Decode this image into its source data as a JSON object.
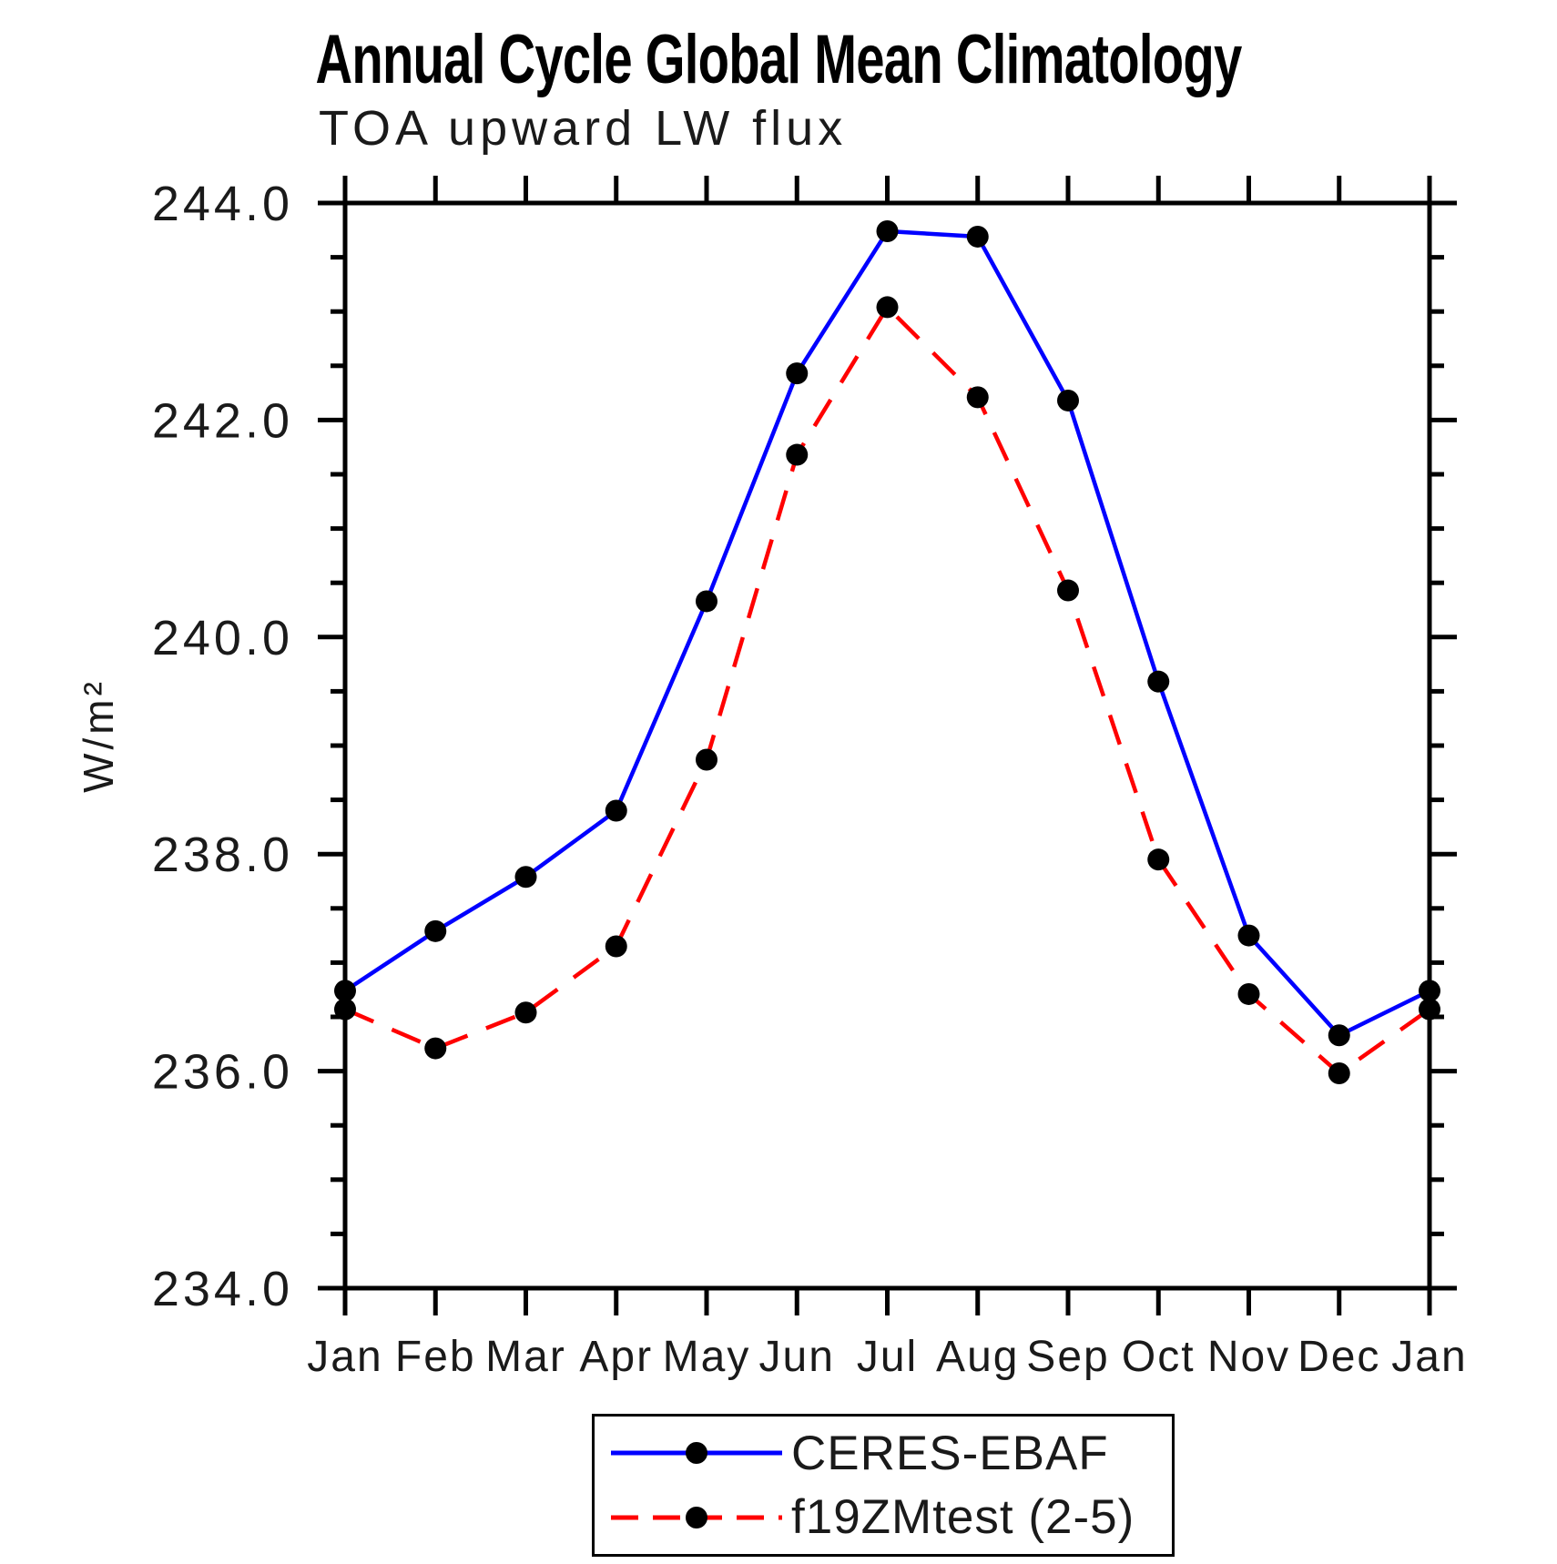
{
  "chart_data": {
    "type": "line",
    "title": "Annual Cycle Global Mean Climatology",
    "subtitle": "TOA upward LW flux",
    "xlabel": "",
    "ylabel": "W/m²",
    "categories": [
      "Jan",
      "Feb",
      "Mar",
      "Apr",
      "May",
      "Jun",
      "Jul",
      "Aug",
      "Sep",
      "Oct",
      "Nov",
      "Dec",
      "Jan"
    ],
    "ylim": [
      234.0,
      244.0
    ],
    "ytick_interval": 2.0,
    "yminor_interval": 0.5,
    "ytick_labels": [
      "234.0",
      "236.0",
      "238.0",
      "240.0",
      "242.0",
      "244.0"
    ],
    "grid": false,
    "legend_position": "bottom-center",
    "axis_color": "#000000",
    "marker_color": "#000000",
    "series": [
      {
        "name": "CERES-EBAF",
        "color": "#0000ff",
        "style": "solid",
        "marker": "circle",
        "values": [
          236.74,
          237.29,
          237.79,
          238.4,
          240.33,
          242.43,
          243.74,
          243.69,
          242.18,
          239.59,
          237.25,
          236.33,
          236.74
        ]
      },
      {
        "name": "f19ZMtest (2-5)",
        "color": "#ff0000",
        "style": "dashed",
        "marker": "circle",
        "values": [
          236.57,
          236.21,
          236.54,
          237.15,
          238.87,
          241.68,
          243.04,
          242.21,
          240.43,
          237.95,
          236.71,
          235.98,
          236.57
        ]
      }
    ]
  }
}
